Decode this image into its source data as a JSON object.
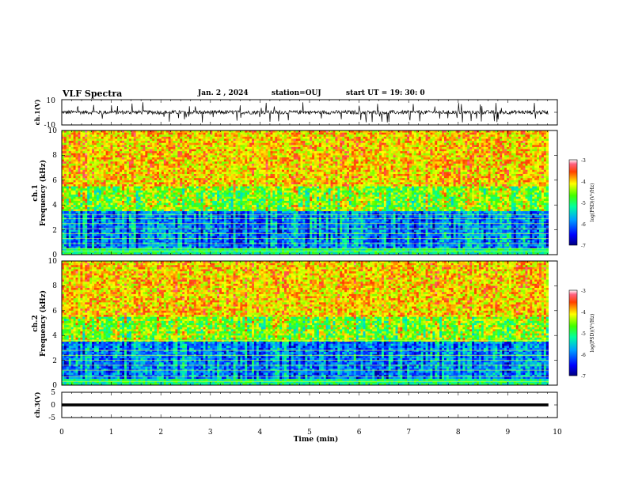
{
  "header": {
    "title": "VLF Spectra",
    "date": "Jan. 2 , 2024",
    "station": "station=OUJ",
    "start": "start UT =  19: 30: 0"
  },
  "chart_data": [
    {
      "id": "ch1-waveform",
      "type": "line",
      "ylabel": "ch.1(V)",
      "ylim": [
        -10,
        10
      ],
      "yticks": [
        "10",
        "-10"
      ],
      "xlim": [
        0,
        10
      ],
      "data_end_min": 9.82,
      "baseline": 0,
      "noise_amplitude": 1.5,
      "spike_amplitude": 8
    },
    {
      "id": "ch1-spectrogram",
      "type": "heatmap",
      "ylabel": "ch.1",
      "ylabel2": "Frequency (kHz)",
      "ylim": [
        0,
        10
      ],
      "yticks": [
        "0",
        "2",
        "4",
        "6",
        "8",
        "10"
      ],
      "xlim": [
        0,
        10
      ],
      "colorbar": {
        "label": "log(PSD)(V²/Hz)",
        "ticks": [
          "-3",
          "-4",
          "-5",
          "-6",
          "-7"
        ],
        "range": [
          -7,
          -3
        ]
      },
      "lines_khz": [
        0.3,
        0.5,
        0.9,
        1.3,
        1.7,
        2.1,
        2.5,
        2.9,
        3.2
      ]
    },
    {
      "id": "ch2-spectrogram",
      "type": "heatmap",
      "ylabel": "ch.2",
      "ylabel2": "Frequency (kHz)",
      "ylim": [
        0,
        10
      ],
      "yticks": [
        "0",
        "2",
        "4",
        "6",
        "8",
        "10"
      ],
      "xlim": [
        0,
        10
      ],
      "colorbar": {
        "label": "log(PSD)(V²/Hz)",
        "ticks": [
          "-3",
          "-4",
          "-5",
          "-6",
          "-7"
        ],
        "range": [
          -7,
          -3
        ]
      },
      "lines_khz": [
        0.3,
        0.7,
        1.2,
        1.6,
        2.0,
        2.4,
        2.8,
        3.6
      ]
    },
    {
      "id": "ch3-waveform",
      "type": "line",
      "ylabel": "ch.3(V)",
      "ylim": [
        -5,
        5
      ],
      "yticks": [
        "5",
        "0",
        "-5"
      ],
      "xlim": [
        0,
        10
      ],
      "data_end_min": 9.82,
      "baseline": 0
    }
  ],
  "xaxis": {
    "label": "Time (min)",
    "ticks": [
      "0",
      "1",
      "2",
      "3",
      "4",
      "5",
      "6",
      "7",
      "8",
      "9",
      "10"
    ]
  },
  "colors": {
    "waveform": "#000000",
    "frame": "#000000"
  }
}
